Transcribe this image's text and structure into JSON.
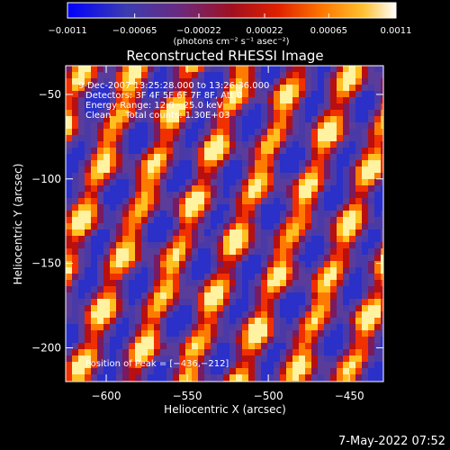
{
  "chart_data": {
    "type": "heatmap",
    "title": "Reconstructed RHESSI Image",
    "xlabel": "Heliocentric X (arcsec)",
    "ylabel": "Heliocentric Y (arcsec)",
    "xlim": [
      -625,
      -429
    ],
    "ylim": [
      -220,
      -33
    ],
    "x_ticks": [
      -600,
      -550,
      -500,
      -450
    ],
    "x_tick_labels": [
      "−600",
      "−550",
      "−500",
      "−450"
    ],
    "y_ticks": [
      -50,
      -100,
      -150,
      -200
    ],
    "y_tick_labels": [
      "−50",
      "−100",
      "−150",
      "−200"
    ],
    "colorbar": {
      "min": -0.0011,
      "max": 0.0011,
      "ticks": [
        -0.0011,
        -0.00065,
        -0.00022,
        0.00022,
        0.00065,
        0.0011
      ],
      "tick_labels": [
        "−0.0011",
        "−0.00065",
        "−0.00022",
        "0.00022",
        "0.00065",
        "0.0011"
      ],
      "unit_label": "(photons cm⁻² s⁻¹ asec⁻²)"
    },
    "annotations": [
      "9-Dec-2007 13:25:28.000 to 13:26:36.000",
      "Detectors: 3F 4F 5F 6F 7F 8F, Att 0",
      "Energy Range: 12.0 - 25.0 keV",
      "Clean     Total counts: 1.30E+03"
    ],
    "peak_label": "Position of Peak = [−436,−212]",
    "peak": [
      -436,
      -212
    ],
    "grid": false
  },
  "footer_timestamp": "7-May-2022 07:52",
  "colormap": [
    "#0000ff",
    "#5a3c9a",
    "#7a2a80",
    "#b01010",
    "#ff4000",
    "#ffa000",
    "#ffff80",
    "#ffffff"
  ]
}
